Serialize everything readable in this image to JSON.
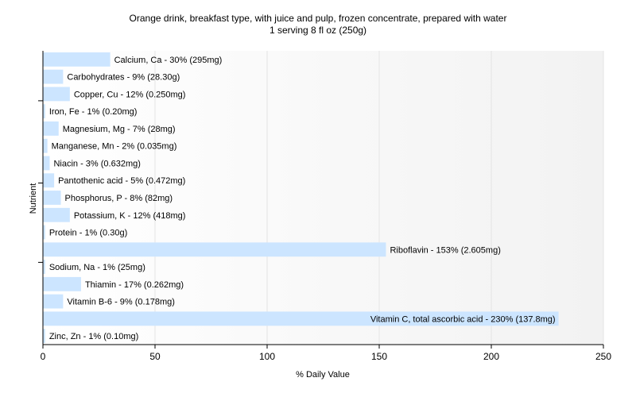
{
  "chart_data": {
    "type": "bar",
    "orientation": "horizontal",
    "title": "Orange drink, breakfast type, with juice and pulp, frozen concentrate, prepared with water",
    "subtitle": "1 serving 8 fl oz (250g)",
    "xlabel": "% Daily Value",
    "ylabel": "Nutrient",
    "xlim": [
      0,
      250
    ],
    "xticks": [
      0,
      50,
      100,
      150,
      200,
      250
    ],
    "grid": true,
    "bar_color": "#cce5ff",
    "bars": [
      {
        "nutrient": "Calcium, Ca",
        "value": 30,
        "label": "Calcium, Ca - 30% (295mg)"
      },
      {
        "nutrient": "Carbohydrates",
        "value": 9,
        "label": "Carbohydrates - 9% (28.30g)"
      },
      {
        "nutrient": "Copper, Cu",
        "value": 12,
        "label": "Copper, Cu - 12% (0.250mg)"
      },
      {
        "nutrient": "Iron, Fe",
        "value": 1,
        "label": "Iron, Fe - 1% (0.20mg)"
      },
      {
        "nutrient": "Magnesium, Mg",
        "value": 7,
        "label": "Magnesium, Mg - 7% (28mg)"
      },
      {
        "nutrient": "Manganese, Mn",
        "value": 2,
        "label": "Manganese, Mn - 2% (0.035mg)"
      },
      {
        "nutrient": "Niacin",
        "value": 3,
        "label": "Niacin - 3% (0.632mg)"
      },
      {
        "nutrient": "Pantothenic acid",
        "value": 5,
        "label": "Pantothenic acid - 5% (0.472mg)"
      },
      {
        "nutrient": "Phosphorus, P",
        "value": 8,
        "label": "Phosphorus, P - 8% (82mg)"
      },
      {
        "nutrient": "Potassium, K",
        "value": 12,
        "label": "Potassium, K - 12% (418mg)"
      },
      {
        "nutrient": "Protein",
        "value": 1,
        "label": "Protein - 1% (0.30g)"
      },
      {
        "nutrient": "Riboflavin",
        "value": 153,
        "label": "Riboflavin - 153% (2.605mg)"
      },
      {
        "nutrient": "Sodium, Na",
        "value": 1,
        "label": "Sodium, Na - 1% (25mg)"
      },
      {
        "nutrient": "Thiamin",
        "value": 17,
        "label": "Thiamin - 17% (0.262mg)"
      },
      {
        "nutrient": "Vitamin B-6",
        "value": 9,
        "label": "Vitamin B-6 - 9% (0.178mg)"
      },
      {
        "nutrient": "Vitamin C, total ascorbic acid",
        "value": 230,
        "label": "Vitamin C, total ascorbic acid - 230% (137.8mg)"
      },
      {
        "nutrient": "Zinc, Zn",
        "value": 1,
        "label": "Zinc, Zn - 1% (0.10mg)"
      }
    ]
  }
}
